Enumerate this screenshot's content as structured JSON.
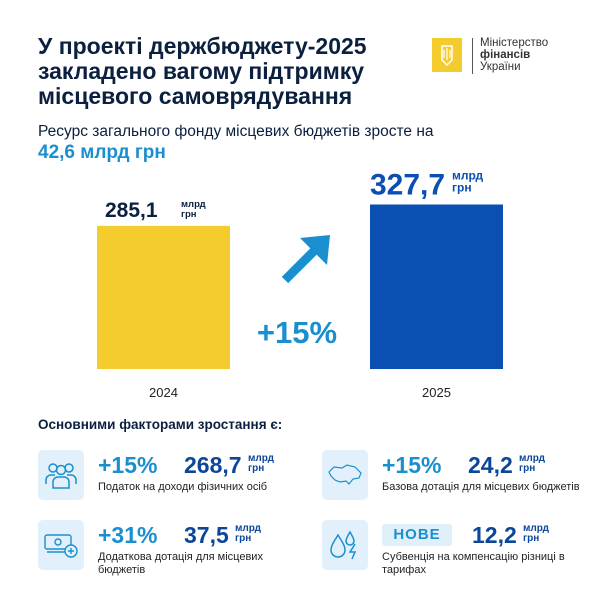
{
  "header": {
    "title": "У проекті держбюджету-2025 закладено вагому підтримку місцевого самоврядування",
    "logo": {
      "line1": "Міністерство",
      "line2": "фінансів",
      "line3": "України"
    },
    "subtitle": "Ресурс загального фонду місцевих бюджетів зросте на",
    "subtitle_value": "42,6 млрд грн"
  },
  "chart_data": {
    "type": "bar",
    "categories": [
      "2024",
      "2025"
    ],
    "values": [
      285.1,
      327.7
    ],
    "value_labels": [
      "285,1",
      "327,7"
    ],
    "unit": "млрд грн",
    "unit_l1": "млрд",
    "unit_l2": "грн",
    "colors": [
      "#f5cc2e",
      "#0b4fb3"
    ],
    "growth_label": "+15%",
    "arrow_color": "#1a8fd0"
  },
  "factors": {
    "heading": "Основними факторами зростання є:",
    "items": [
      {
        "icon": "people-icon",
        "change": "+15%",
        "value": "268,7",
        "unit1": "млрд",
        "unit2": "грн",
        "desc": "Податок на доходи фізичних осіб"
      },
      {
        "icon": "ukraine-map-icon",
        "change": "+15%",
        "value": "24,2",
        "unit1": "млрд",
        "unit2": "грн",
        "desc": "Базова дотація для місцевих бюджетів"
      },
      {
        "icon": "money-plus-icon",
        "change": "+31%",
        "value": "37,5",
        "unit1": "млрд",
        "unit2": "грн",
        "desc": "Додаткова дотація для місцевих бюджетів"
      },
      {
        "icon": "water-energy-icon",
        "change": "НОВЕ",
        "value": "12,2",
        "unit1": "млрд",
        "unit2": "грн",
        "desc": "Субвенція на компенсацію різниці в тарифах"
      }
    ]
  }
}
